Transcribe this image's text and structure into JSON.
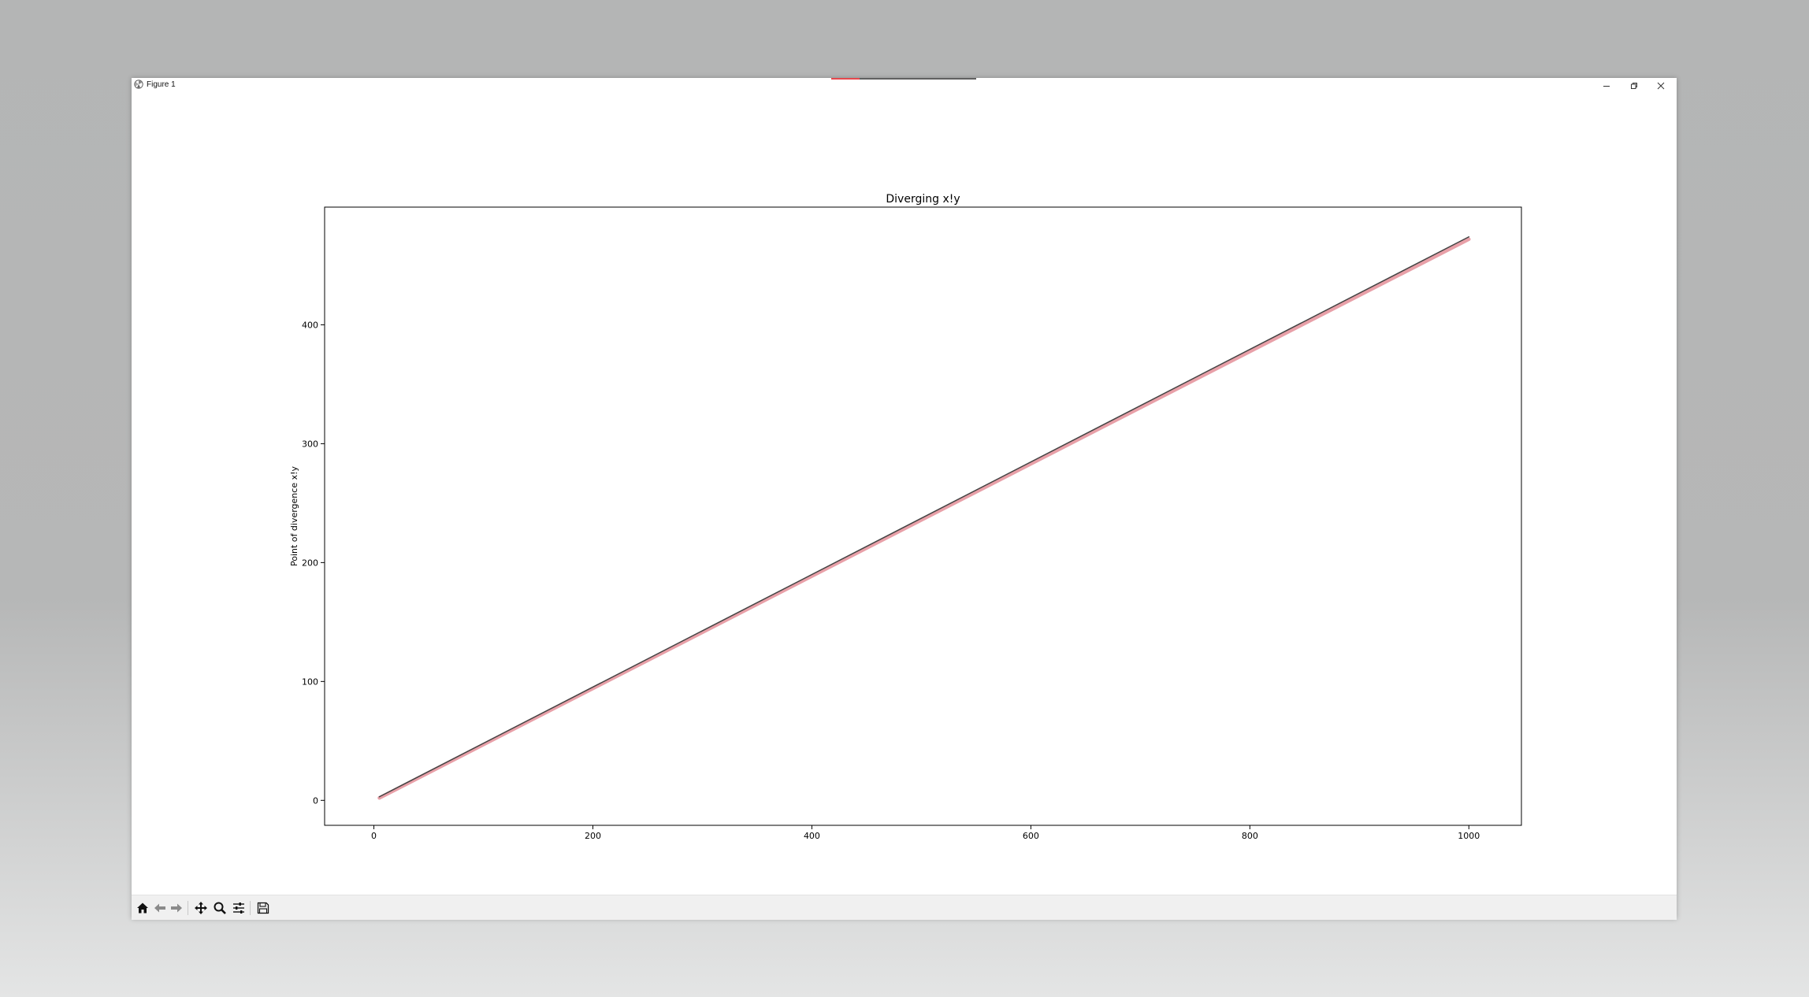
{
  "window": {
    "title": "Figure 1",
    "minimize_icon": "minimize-icon",
    "restore_icon": "restore-icon",
    "close_icon": "close-icon"
  },
  "toolbar": {
    "buttons": [
      {
        "name": "home",
        "icon": "home-icon"
      },
      {
        "name": "back",
        "icon": "arrow-left-icon"
      },
      {
        "name": "forward",
        "icon": "arrow-right-icon"
      },
      {
        "name": "pan",
        "icon": "move-icon"
      },
      {
        "name": "zoom",
        "icon": "magnifier-icon"
      },
      {
        "name": "configure-subplots",
        "icon": "sliders-icon"
      },
      {
        "name": "save",
        "icon": "floppy-disk-icon"
      }
    ]
  },
  "chart_data": {
    "type": "line",
    "title": "Diverging x!y",
    "xlabel": "",
    "ylabel": "Point of divergence x!y",
    "xlim": [
      -45,
      1048
    ],
    "ylim": [
      -21,
      499
    ],
    "xticks": [
      0,
      200,
      400,
      600,
      800,
      1000
    ],
    "yticks": [
      0,
      100,
      200,
      300,
      400
    ],
    "grid": false,
    "series": [
      {
        "color": "#e8a0a8",
        "width_hint": "thick",
        "x": [
          5,
          1000
        ],
        "y": [
          2,
          472
        ]
      },
      {
        "color": "#444444",
        "width_hint": "thin",
        "x": [
          5,
          1000
        ],
        "y": [
          3,
          474
        ]
      }
    ]
  }
}
